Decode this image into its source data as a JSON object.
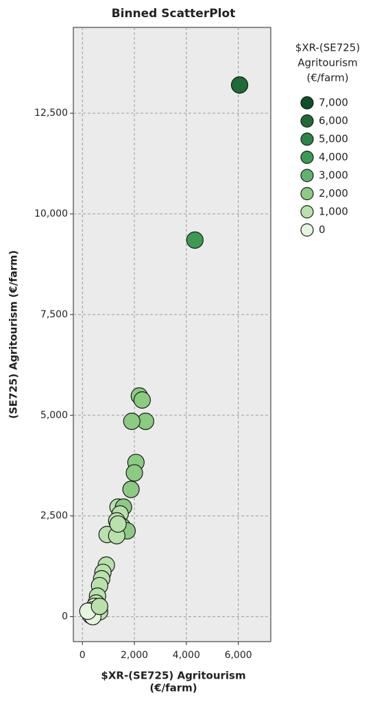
{
  "chart_data": {
    "type": "scatter",
    "title": "Binned ScatterPlot",
    "x_label": [
      "$XR-(SE725) Agritourism",
      "(€/farm)"
    ],
    "y_label": "(SE725) Agritourism (€/farm)",
    "x": [
      6050,
      4330,
      2190,
      2300,
      2430,
      1900,
      2060,
      2000,
      1870,
      1370,
      1580,
      1450,
      1320,
      1530,
      1720,
      950,
      1320,
      1370,
      920,
      790,
      740,
      660,
      580,
      530,
      470,
      400,
      340,
      320,
      530,
      660,
      400,
      210,
      660
    ],
    "values": [
      13200,
      9350,
      5480,
      5380,
      4850,
      4850,
      3830,
      3570,
      3160,
      2720,
      2720,
      2550,
      2380,
      2240,
      2130,
      2040,
      2010,
      2300,
      1280,
      1100,
      940,
      770,
      510,
      340,
      255,
      170,
      120,
      30,
      85,
      120,
      0,
      135,
      255
    ],
    "xlim": [
      -350,
      7250
    ],
    "ylim": [
      -620,
      14630
    ],
    "xticks": [
      0,
      {
        "value": 2000,
        "label": "2,000"
      },
      {
        "value": 4000,
        "label": "4,000"
      },
      {
        "value": 6000,
        "label": "6,000"
      }
    ],
    "yticks": [
      0,
      {
        "value": 2500,
        "label": "2,500"
      },
      {
        "value": 5000,
        "label": "5,000"
      },
      {
        "value": 7500,
        "label": "7,500"
      },
      {
        "value": 10000,
        "label": "10,000"
      },
      {
        "value": 12500,
        "label": "12,500"
      }
    ],
    "grid": true,
    "legend": {
      "title": [
        "$XR-(SE725)",
        "Agritourism",
        "(€/farm)"
      ],
      "items": [
        {
          "value": 7000,
          "label": "7,000",
          "color": "#0d4f27"
        },
        {
          "value": 6000,
          "label": "6,000",
          "color": "#1d6b35"
        },
        {
          "value": 5000,
          "label": "5,000",
          "color": "#2b8444"
        },
        {
          "value": 4000,
          "label": "4,000",
          "color": "#3e9a52"
        },
        {
          "value": 3000,
          "label": "3,000",
          "color": "#5fb36b"
        },
        {
          "value": 2000,
          "label": "2,000",
          "color": "#8bcb82"
        },
        {
          "value": 1000,
          "label": "1,000",
          "color": "#b9e1ac"
        },
        {
          "value": 0,
          "label": "0",
          "color": "#e6f5de"
        }
      ]
    }
  }
}
